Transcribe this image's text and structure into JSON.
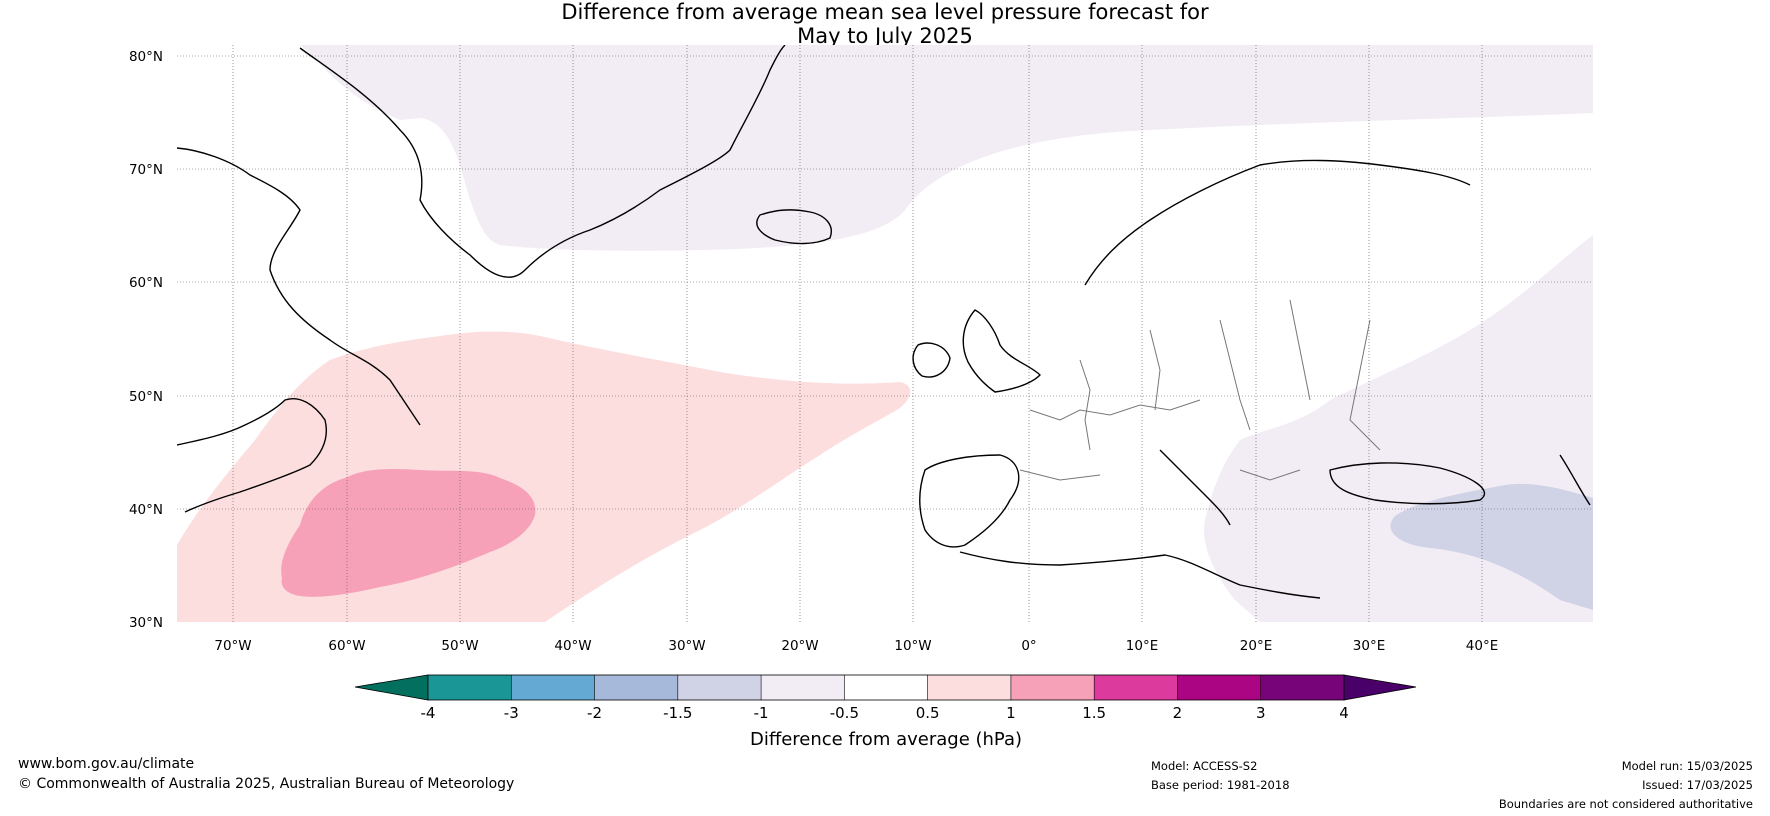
{
  "title": {
    "line1": "Difference from average mean sea level pressure forecast for",
    "line2": "May to July 2025"
  },
  "map": {
    "lat_labels": [
      "80°N",
      "70°N",
      "60°N",
      "50°N",
      "40°N",
      "30°N"
    ],
    "lon_labels": [
      "70°W",
      "60°W",
      "50°W",
      "40°W",
      "30°W",
      "20°W",
      "10°W",
      "0°",
      "10°E",
      "20°E",
      "30°E",
      "40°E"
    ],
    "extent": {
      "lon": [
        -75,
        50
      ],
      "lat": [
        30,
        81
      ]
    },
    "layers": [
      {
        "name": "weak-high-anomaly-north-atlantic",
        "range": "0.5 to 1 hPa",
        "color": "#fcdedf"
      },
      {
        "name": "high-anomaly-core-off-us-east-coast",
        "range": "1 to 1.5 hPa",
        "color": "#f7a1b8"
      },
      {
        "name": "weak-low-anomaly-greenland-arctic",
        "range": "-1 to -0.5 hPa",
        "color": "#f2ecf5"
      },
      {
        "name": "weak-low-anomaly-eastern-europe",
        "range": "-1 to -0.5 hPa",
        "color": "#f2ecf5"
      },
      {
        "name": "low-anomaly-turkey-caspian",
        "range": "-1.5 to -1 hPa",
        "color": "#d0d2e6"
      }
    ]
  },
  "colorbar": {
    "ticks": [
      "-4",
      "-3",
      "-2",
      "-1.5",
      "-1",
      "-0.5",
      "0.5",
      "1",
      "1.5",
      "2",
      "3",
      "4"
    ],
    "colors": [
      "#1a9696",
      "#64a9d4",
      "#a6b9da",
      "#d0d2e6",
      "#f2ecf5",
      "#ffffff",
      "#fcdedf",
      "#f7a1b8",
      "#dc3a9c",
      "#ac0583",
      "#780479"
    ],
    "extend_low_color": "#03705f",
    "extend_high_color": "#4a0069",
    "label": "Difference from average (hPa)"
  },
  "footer": {
    "url": "www.bom.gov.au/climate",
    "copyright": "© Commonwealth of Australia 2025, Australian Bureau of Meteorology",
    "model": "Model: ACCESS-S2",
    "base_period": "Base period: 1981-2018",
    "model_run": "Model run: 15/03/2025",
    "issued": "Issued: 17/03/2025",
    "disclaimer": "Boundaries are not considered authoritative"
  }
}
